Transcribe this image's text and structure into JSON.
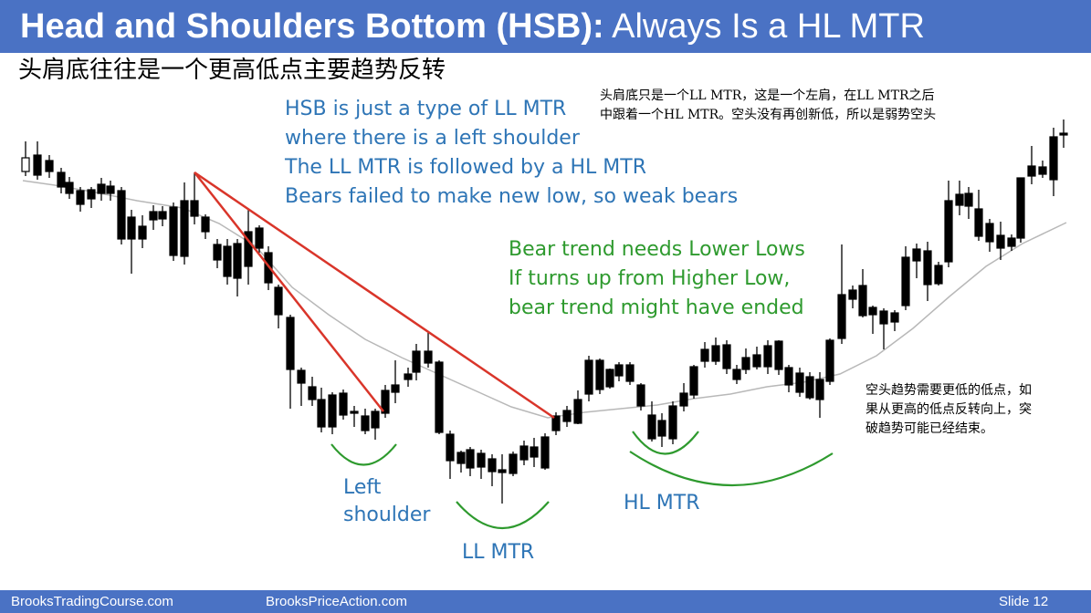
{
  "title": {
    "bold": "Head and Shoulders Bottom (HSB):",
    "rest": " Always Is a HL MTR"
  },
  "subtitle_cn": "头肩底往往是一个更高低点主要趋势反转",
  "note_cn_top": [
    "头肩底只是一个LL MTR，这是一个左肩，在LL MTR之后",
    "中跟着一个HL MTR。空头没有再创新低，所以是弱势空头"
  ],
  "note_cn_right": [
    "空头趋势需要更低的低点，如",
    "果从更高的低点反转向上，突",
    "破趋势可能已经结束。"
  ],
  "annotation_blue": [
    "HSB is just a type of LL MTR",
    "where there is a left shoulder",
    "The LL MTR is followed by a HL MTR",
    "Bears failed to make new low, so weak bears"
  ],
  "annotation_green": [
    "Bear trend needs Lower Lows",
    "If turns up from Higher Low,",
    "bear trend might have ended"
  ],
  "labels": {
    "left_shoulder": [
      "Left",
      "shoulder"
    ],
    "ll_mtr": "LL MTR",
    "hl_mtr": "HL MTR"
  },
  "footer": {
    "left": "BrooksTradingCourse.com",
    "mid": "BrooksPriceAction.com",
    "slide": "Slide  12"
  },
  "colors": {
    "header": "#4a72c4",
    "trendline": "#d9352a",
    "arc": "#2e9a2e",
    "ma": "#b8b8b8",
    "bull": "#ffffff",
    "bear": "#000000"
  },
  "chart_data": {
    "type": "candlestick",
    "title": "",
    "xlabel": "",
    "ylabel": "",
    "moving_average": true,
    "grid": false
  }
}
